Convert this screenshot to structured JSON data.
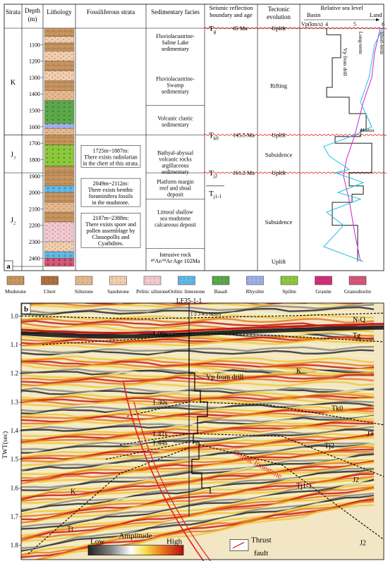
{
  "panel_a": {
    "label": "a",
    "headers": {
      "strata": "Strata",
      "depth": "Depth (m)",
      "lithology": "Lithology",
      "fossil": "Fossiliferous strata",
      "facies": "Sedimentary facies",
      "seismic": "Seismic reflection boundary and age",
      "tectonic": "Tectonic evolution",
      "sea_level": "Relative sea level"
    },
    "strata": [
      {
        "name": "K",
        "top": 1000,
        "bottom": 1650
      },
      {
        "name": "J3",
        "top": 1650,
        "bottom": 1880
      },
      {
        "name": "J2",
        "top": 1880,
        "bottom": 2450
      }
    ],
    "depth_ticks": [
      "1100",
      "1200",
      "1300",
      "1400",
      "1500",
      "1600",
      "1700",
      "1800",
      "1900",
      "2000",
      "2100",
      "2200",
      "2300",
      "2400"
    ],
    "lithology_bands": [
      {
        "top": 1000,
        "bottom": 1050,
        "type": "mudstone"
      },
      {
        "top": 1050,
        "bottom": 1090,
        "type": "sandstone"
      },
      {
        "top": 1090,
        "bottom": 1140,
        "type": "mudstone"
      },
      {
        "top": 1140,
        "bottom": 1200,
        "type": "sandstone"
      },
      {
        "top": 1200,
        "bottom": 1260,
        "type": "mudstone"
      },
      {
        "top": 1260,
        "bottom": 1320,
        "type": "sandstone"
      },
      {
        "top": 1320,
        "bottom": 1380,
        "type": "mudstone"
      },
      {
        "top": 1380,
        "bottom": 1440,
        "type": "siltstone"
      },
      {
        "top": 1440,
        "bottom": 1580,
        "type": "basalt"
      },
      {
        "top": 1580,
        "bottom": 1610,
        "type": "rhyolite"
      },
      {
        "top": 1610,
        "bottom": 1650,
        "type": "siltstone"
      },
      {
        "top": 1650,
        "bottom": 1710,
        "type": "mudstone"
      },
      {
        "top": 1710,
        "bottom": 1840,
        "type": "spilite"
      },
      {
        "top": 1840,
        "bottom": 1880,
        "type": "mudstone"
      },
      {
        "top": 1880,
        "bottom": 1960,
        "type": "mudstone"
      },
      {
        "top": 1960,
        "bottom": 2000,
        "type": "oolitic"
      },
      {
        "top": 2000,
        "bottom": 2060,
        "type": "mudstone"
      },
      {
        "top": 2060,
        "bottom": 2120,
        "type": "siltstone"
      },
      {
        "top": 2120,
        "bottom": 2180,
        "type": "mudstone"
      },
      {
        "top": 2180,
        "bottom": 2300,
        "type": "pelitic"
      },
      {
        "top": 2300,
        "bottom": 2360,
        "type": "sandstone"
      },
      {
        "top": 2360,
        "bottom": 2400,
        "type": "oolitic"
      },
      {
        "top": 2400,
        "bottom": 2450,
        "type": "granodiorite"
      }
    ],
    "fossils": [
      {
        "text": [
          "1725m~1887m:",
          "There exists radiolarian",
          "in the chert of this strata."
        ],
        "y": 1780
      },
      {
        "text": [
          "2049m~2112m:",
          "There exists benthic",
          "foraminifera fossils",
          "in the mudstone."
        ],
        "y": 2000
      },
      {
        "text": [
          "2187m~2388m:",
          "There exists spore and",
          "pollen assemblage by",
          "Classopollis and",
          "Cyathdites."
        ],
        "y": 2230
      }
    ],
    "facies": [
      {
        "text": [
          "Fluviolacustrine-",
          "Saline Lake",
          "sedimentary"
        ],
        "y": 1060
      },
      {
        "text": [
          "Fluviolacustrine-",
          "Swamp",
          "sedimentary"
        ],
        "y": 1320
      },
      {
        "text": [
          "Volcanic clastic",
          "sedimentary"
        ],
        "y": 1560
      },
      {
        "text": [
          "Bathyal-abyssal",
          "volcanic rocks",
          "argillaceous",
          "sedimentary"
        ],
        "y": 1770
      },
      {
        "text": [
          "Platform margin",
          "reef and shoal",
          "deposit"
        ],
        "y": 1945
      },
      {
        "text": [
          "Littoral shallow",
          "sea mudstone",
          "calcareous deposit"
        ],
        "y": 2130
      },
      {
        "text": [
          "Intrusive rock",
          "⁴⁰Ar/³⁹Ar Age 102Ma"
        ],
        "y": 2390
      }
    ],
    "boundaries": [
      {
        "name": "Tg",
        "age": "65 Ma",
        "depth": 1000
      },
      {
        "name": "Tk0",
        "age": "145.5 Ma",
        "depth": 1650
      },
      {
        "name": "Tj2",
        "age": "161.2 Ma",
        "depth": 1880
      },
      {
        "name": "Tj1-1",
        "age": "",
        "depth": 1960
      }
    ],
    "tectonic": [
      {
        "text": "Uplift",
        "depth": 1000
      },
      {
        "text": "Rifting",
        "depth": 1350
      },
      {
        "text": "Uplift",
        "depth": 1650
      },
      {
        "text": "Subsidence",
        "depth": 1770
      },
      {
        "text": "Uplift",
        "depth": 1880
      },
      {
        "text": "Subsidence",
        "depth": 2180
      },
      {
        "text": "Uplift",
        "depth": 2420
      }
    ],
    "sea_level": {
      "basin": "Basin",
      "land": "Land",
      "vp_label": "Vp(km/s)",
      "ticks": [
        "4",
        "5",
        "6"
      ],
      "labels": {
        "vp": "Vp from drill",
        "long": "Long-term",
        "short": "Short-term",
        "hiatus": "Hiatus"
      }
    }
  },
  "legend": [
    {
      "label": "Mudstone",
      "type": "mudstone"
    },
    {
      "label": "Chert",
      "type": "chert"
    },
    {
      "label": "Siltstone",
      "type": "siltstone"
    },
    {
      "label": "Sandstone",
      "type": "sandstone"
    },
    {
      "label": "Pelitic siltstone",
      "type": "pelitic"
    },
    {
      "label": "Oolitic limestone",
      "type": "oolitic"
    },
    {
      "label": "Basalt",
      "type": "basalt"
    },
    {
      "label": "Rhyolite",
      "type": "rhyolite"
    },
    {
      "label": "Spilite",
      "type": "spilite"
    },
    {
      "label": "Granite",
      "type": "granite"
    },
    {
      "label": "Granodiorite",
      "type": "granodiorite"
    }
  ],
  "colors": {
    "mudstone": "#c89560",
    "chert": "#b07040",
    "siltstone": "#e6b98e",
    "sandstone": "#f2cfae",
    "pelitic": "#f3c9d2",
    "oolitic": "#62b8e6",
    "basalt": "#5aa84a",
    "rhyolite": "#9fb0e8",
    "spilite": "#8cc83c",
    "granite": "#d0307a",
    "granodiorite": "#d65878",
    "red_line": "#e02020",
    "cyan_curve": "#20c0e0",
    "magenta_curve": "#d020d0"
  },
  "panel_b": {
    "label": "b",
    "well": "LF35-1-1",
    "y_axis_label": "TWT(sec)",
    "y_ticks": [
      "1.0",
      "1.1",
      "1.2",
      "1.3",
      "1.4",
      "1.5",
      "1.6",
      "1.7",
      "1.8"
    ],
    "horizon_labels": [
      {
        "text": "1.06s",
        "t": 1.06
      },
      {
        "text": "1.30s",
        "t": 1.3
      },
      {
        "text": "1.41s",
        "t": 1.41
      },
      {
        "text": "1.44s",
        "t": 1.44
      }
    ],
    "annotations": {
      "nq": "N-Q",
      "tg": "Tg",
      "k": "K",
      "tk0": "Tk0",
      "j3": "J3",
      "tj2": "Tj2",
      "j2": "J2",
      "tj11": "Tj1-1",
      "j2b": "J2",
      "tt": "Tt",
      "vp": "Vp from drill",
      "oolite": "Oolitic limestone",
      "vp_scale": "1  2  3  4  5  6km/s",
      "amplitude": "Amplitude",
      "low": "Low",
      "high": "High",
      "thrust": "Thrust",
      "fault": "fault"
    }
  }
}
